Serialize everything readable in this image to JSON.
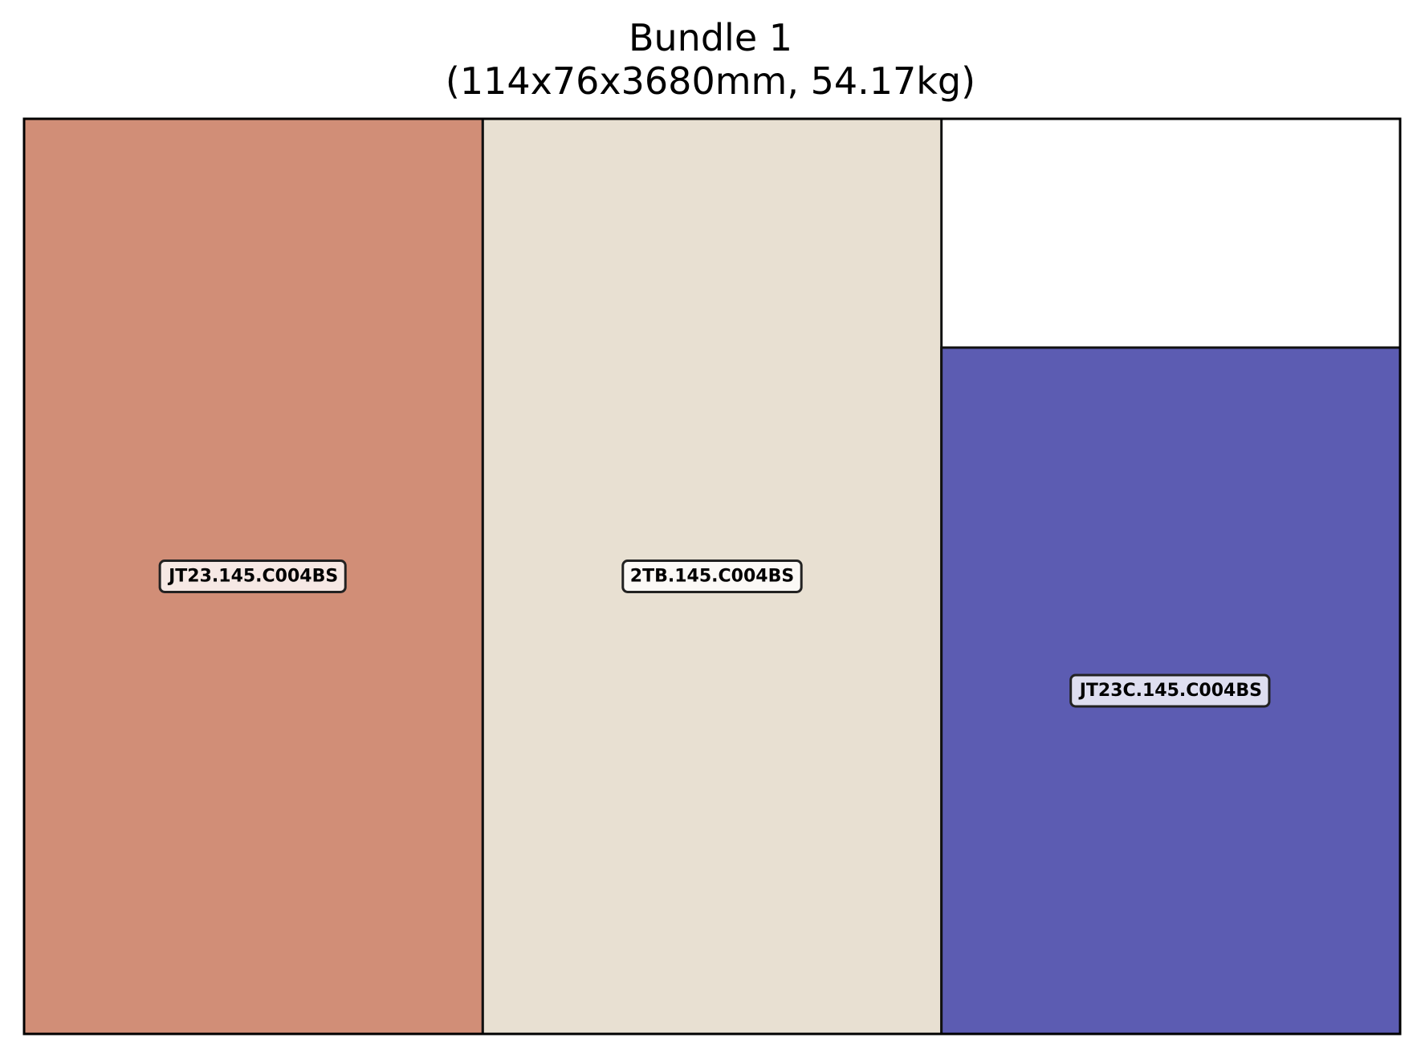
{
  "title": "Bundle 1",
  "subtitle": "(114x76x3680mm, 54.17kg)",
  "bundle": {
    "width_mm": 114,
    "height_mm": 76,
    "length_mm": 3680,
    "weight_kg": 54.17
  },
  "profiles": [
    {
      "label": "JT23.145.C004BS",
      "color": "#d18e77",
      "x_mm": 0,
      "y_mm": 0,
      "w_mm": 38,
      "h_mm": 76
    },
    {
      "label": "2TB.145.C004BS",
      "color": "#e8e0d2",
      "x_mm": 38,
      "y_mm": 0,
      "w_mm": 38,
      "h_mm": 76
    },
    {
      "label": "JT23C.145.C004BS",
      "color": "#5c5cb2",
      "x_mm": 76,
      "y_mm": 0,
      "w_mm": 38,
      "h_mm": 57
    }
  ]
}
